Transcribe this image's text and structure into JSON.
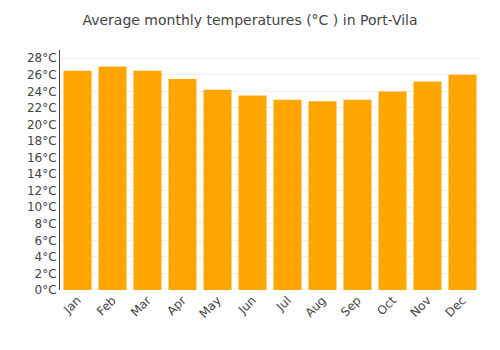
{
  "chart_data": {
    "type": "bar",
    "title": "Average monthly temperatures (°C ) in Port-Vila",
    "categories": [
      "Jan",
      "Feb",
      "Mar",
      "Apr",
      "May",
      "Jun",
      "Jul",
      "Aug",
      "Sep",
      "Oct",
      "Nov",
      "Dec"
    ],
    "values": [
      26.5,
      27.0,
      26.5,
      25.5,
      24.2,
      23.5,
      23.0,
      22.8,
      23.0,
      24.0,
      25.2,
      26.0
    ],
    "color": "#FFA500",
    "ylim": [
      0,
      29
    ],
    "yticks": [
      {
        "value": 0,
        "label": "0°C"
      },
      {
        "value": 2,
        "label": "2°C"
      },
      {
        "value": 4,
        "label": "4°C"
      },
      {
        "value": 6,
        "label": "6°C"
      },
      {
        "value": 8,
        "label": "8°C"
      },
      {
        "value": 10,
        "label": "10°C"
      },
      {
        "value": 12,
        "label": "12°C"
      },
      {
        "value": 14,
        "label": "14°C"
      },
      {
        "value": 16,
        "label": "16°C"
      },
      {
        "value": 18,
        "label": "18°C"
      },
      {
        "value": 20,
        "label": "20°C"
      },
      {
        "value": 22,
        "label": "22°C"
      },
      {
        "value": 24,
        "label": "24°C"
      },
      {
        "value": 26,
        "label": "26°C"
      },
      {
        "value": 28,
        "label": "28°C"
      }
    ],
    "grid": true
  }
}
